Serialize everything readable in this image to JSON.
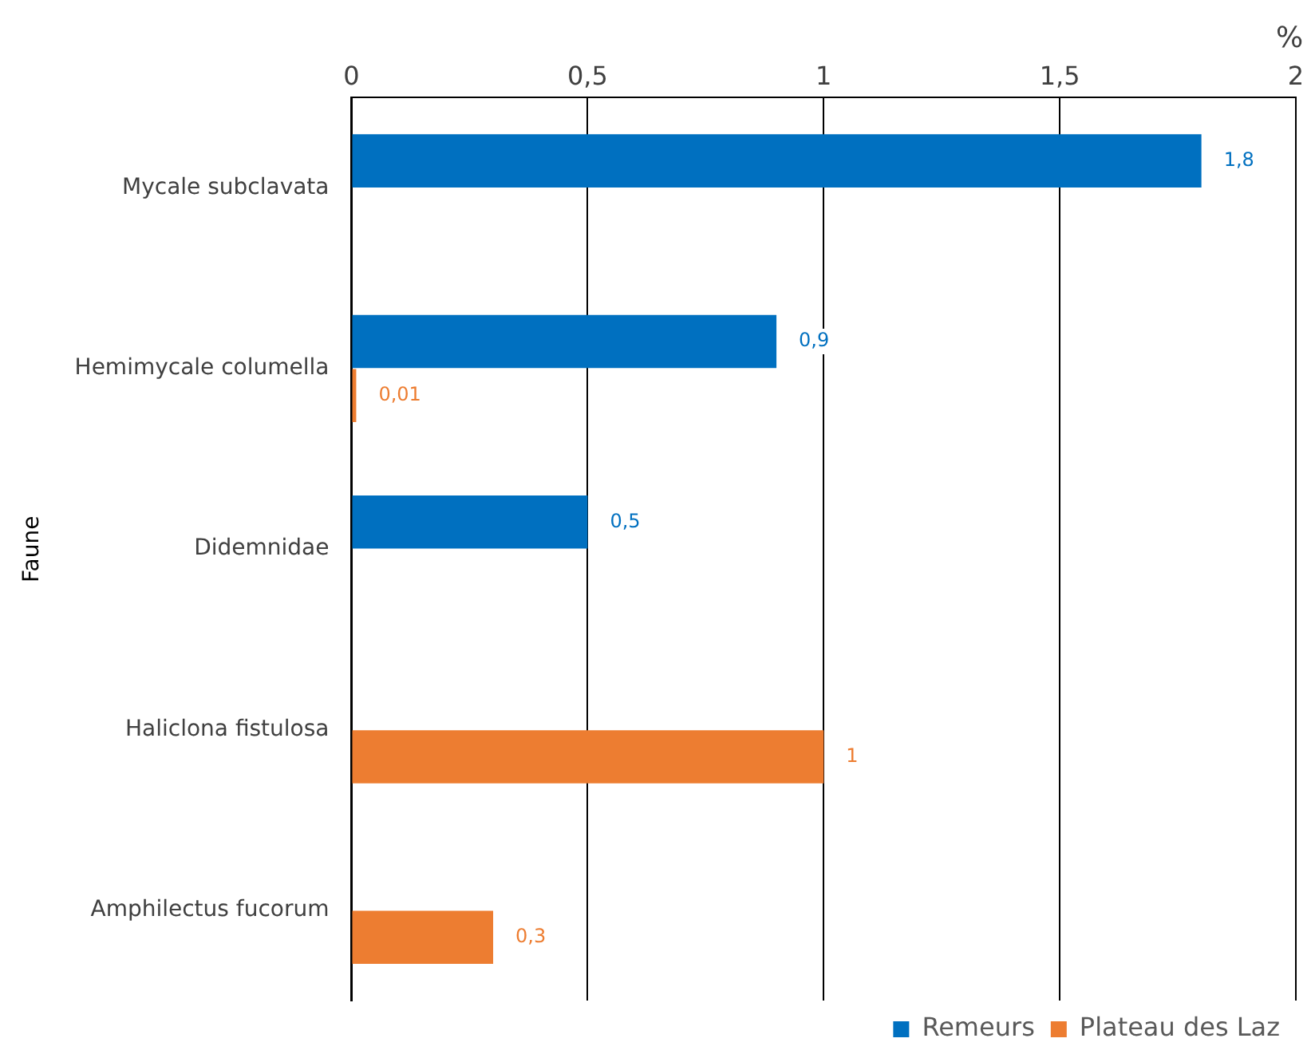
{
  "chart_data": {
    "type": "bar",
    "orientation": "horizontal",
    "xlabel": "%",
    "ylabel": "Faune",
    "categories": [
      "Mycale subclavata",
      "Hemimycale columella",
      "Didemnidae",
      "Haliclona fistulosa",
      "Amphilectus fucorum"
    ],
    "series": [
      {
        "name": "Remeurs",
        "color": "#0070c0",
        "values": [
          1.8,
          0.9,
          0.5,
          null,
          null
        ],
        "value_labels": [
          "1,8",
          "0,9",
          "0,5",
          null,
          null
        ]
      },
      {
        "name": "Plateau des Laz",
        "color": "#ed7d31",
        "values": [
          null,
          0.01,
          null,
          1,
          0.3
        ],
        "value_labels": [
          null,
          "0,01",
          null,
          "1",
          "0,3"
        ]
      }
    ],
    "xlim": [
      0,
      2
    ],
    "xticks": [
      0,
      {
        "value": 0.5,
        "label": "0,5"
      },
      1,
      {
        "value": 1.5,
        "label": "1,5"
      },
      2
    ],
    "grid": "x",
    "legend": "bottom right"
  }
}
